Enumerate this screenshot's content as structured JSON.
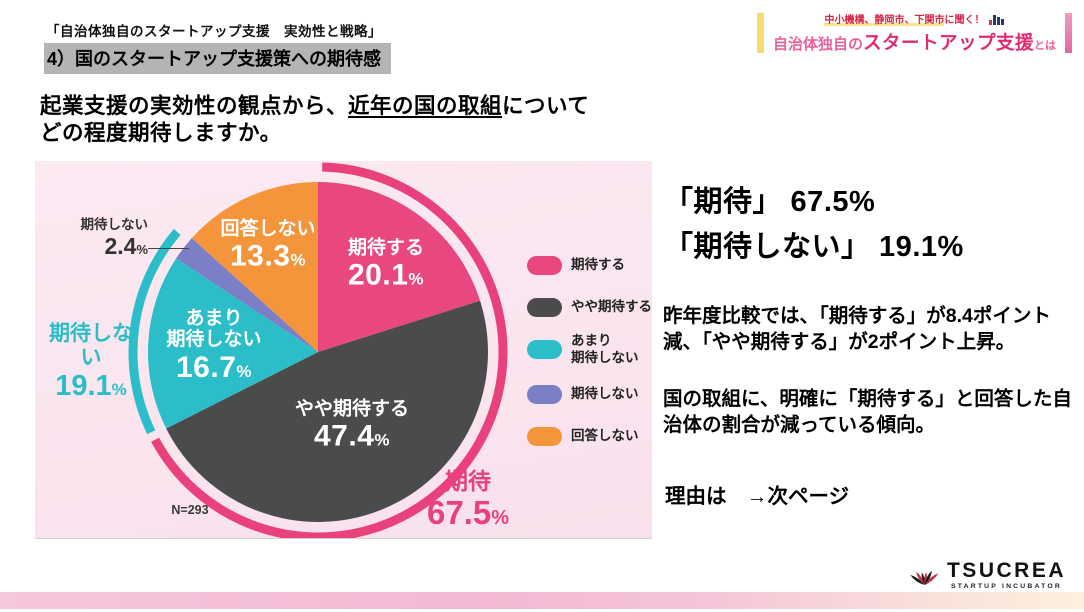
{
  "header": {
    "series_title": "「自治体独自のスタートアップ支援　実効性と戦略」",
    "slide_title": "4）国のスタートアップ支援策への期待感"
  },
  "banner": {
    "tagline_highlight": "中小機構、静岡市、下関市",
    "tagline_rest": "に聞く！",
    "main_prefix": "自治体独自の",
    "main_emphasis": "スタートアップ支援",
    "main_suffix": "とは"
  },
  "question": {
    "line1_pre": "起業支援の実効性の観点から、",
    "line1_underline": "近年の国の取組",
    "line1_post": "について",
    "line2": "どの程度期待しますか。"
  },
  "chart_data": {
    "type": "pie",
    "n_label": "N=293",
    "percent_sign": "%",
    "start_angle_deg": 0,
    "direction": "clockwise",
    "series": [
      {
        "label": "期待する",
        "value": 20.1,
        "value_text": "20.1",
        "color": "#e8477f"
      },
      {
        "label": "やや期待する",
        "value": 47.4,
        "value_text": "47.4",
        "color": "#4b4b4d"
      },
      {
        "label": "あまり\n期待しない",
        "value": 16.7,
        "value_text": "16.7",
        "color": "#2bbec8"
      },
      {
        "label": "期待しない",
        "value": 2.4,
        "value_text": "2.4",
        "color": "#7a7fc6"
      },
      {
        "label": "回答しない",
        "value": 13.3,
        "value_text": "13.3",
        "color": "#f4953c"
      }
    ],
    "groups": [
      {
        "label": "期待",
        "value": 67.5,
        "value_text": "67.5",
        "color": "#e8417c"
      },
      {
        "label": "期待しない",
        "value": 19.1,
        "value_text": "19.1",
        "color": "#2bbec8"
      }
    ],
    "legend_position": "right"
  },
  "summary": {
    "headline_line1": "「期待」 67.5%",
    "headline_line2": "「期待しない」 19.1%",
    "paragraph1": "昨年度比較では、「期待する」が8.4ポイント減、「やや期待する」が2ポイント上昇。",
    "paragraph2": "国の取組に、明確に「期待する」と回答した自治体の割合が減っている傾向。",
    "reason": "理由は　→次ページ"
  },
  "logo": {
    "name": "TSUCREA",
    "subtitle": "STARTUP INCUBATOR"
  }
}
